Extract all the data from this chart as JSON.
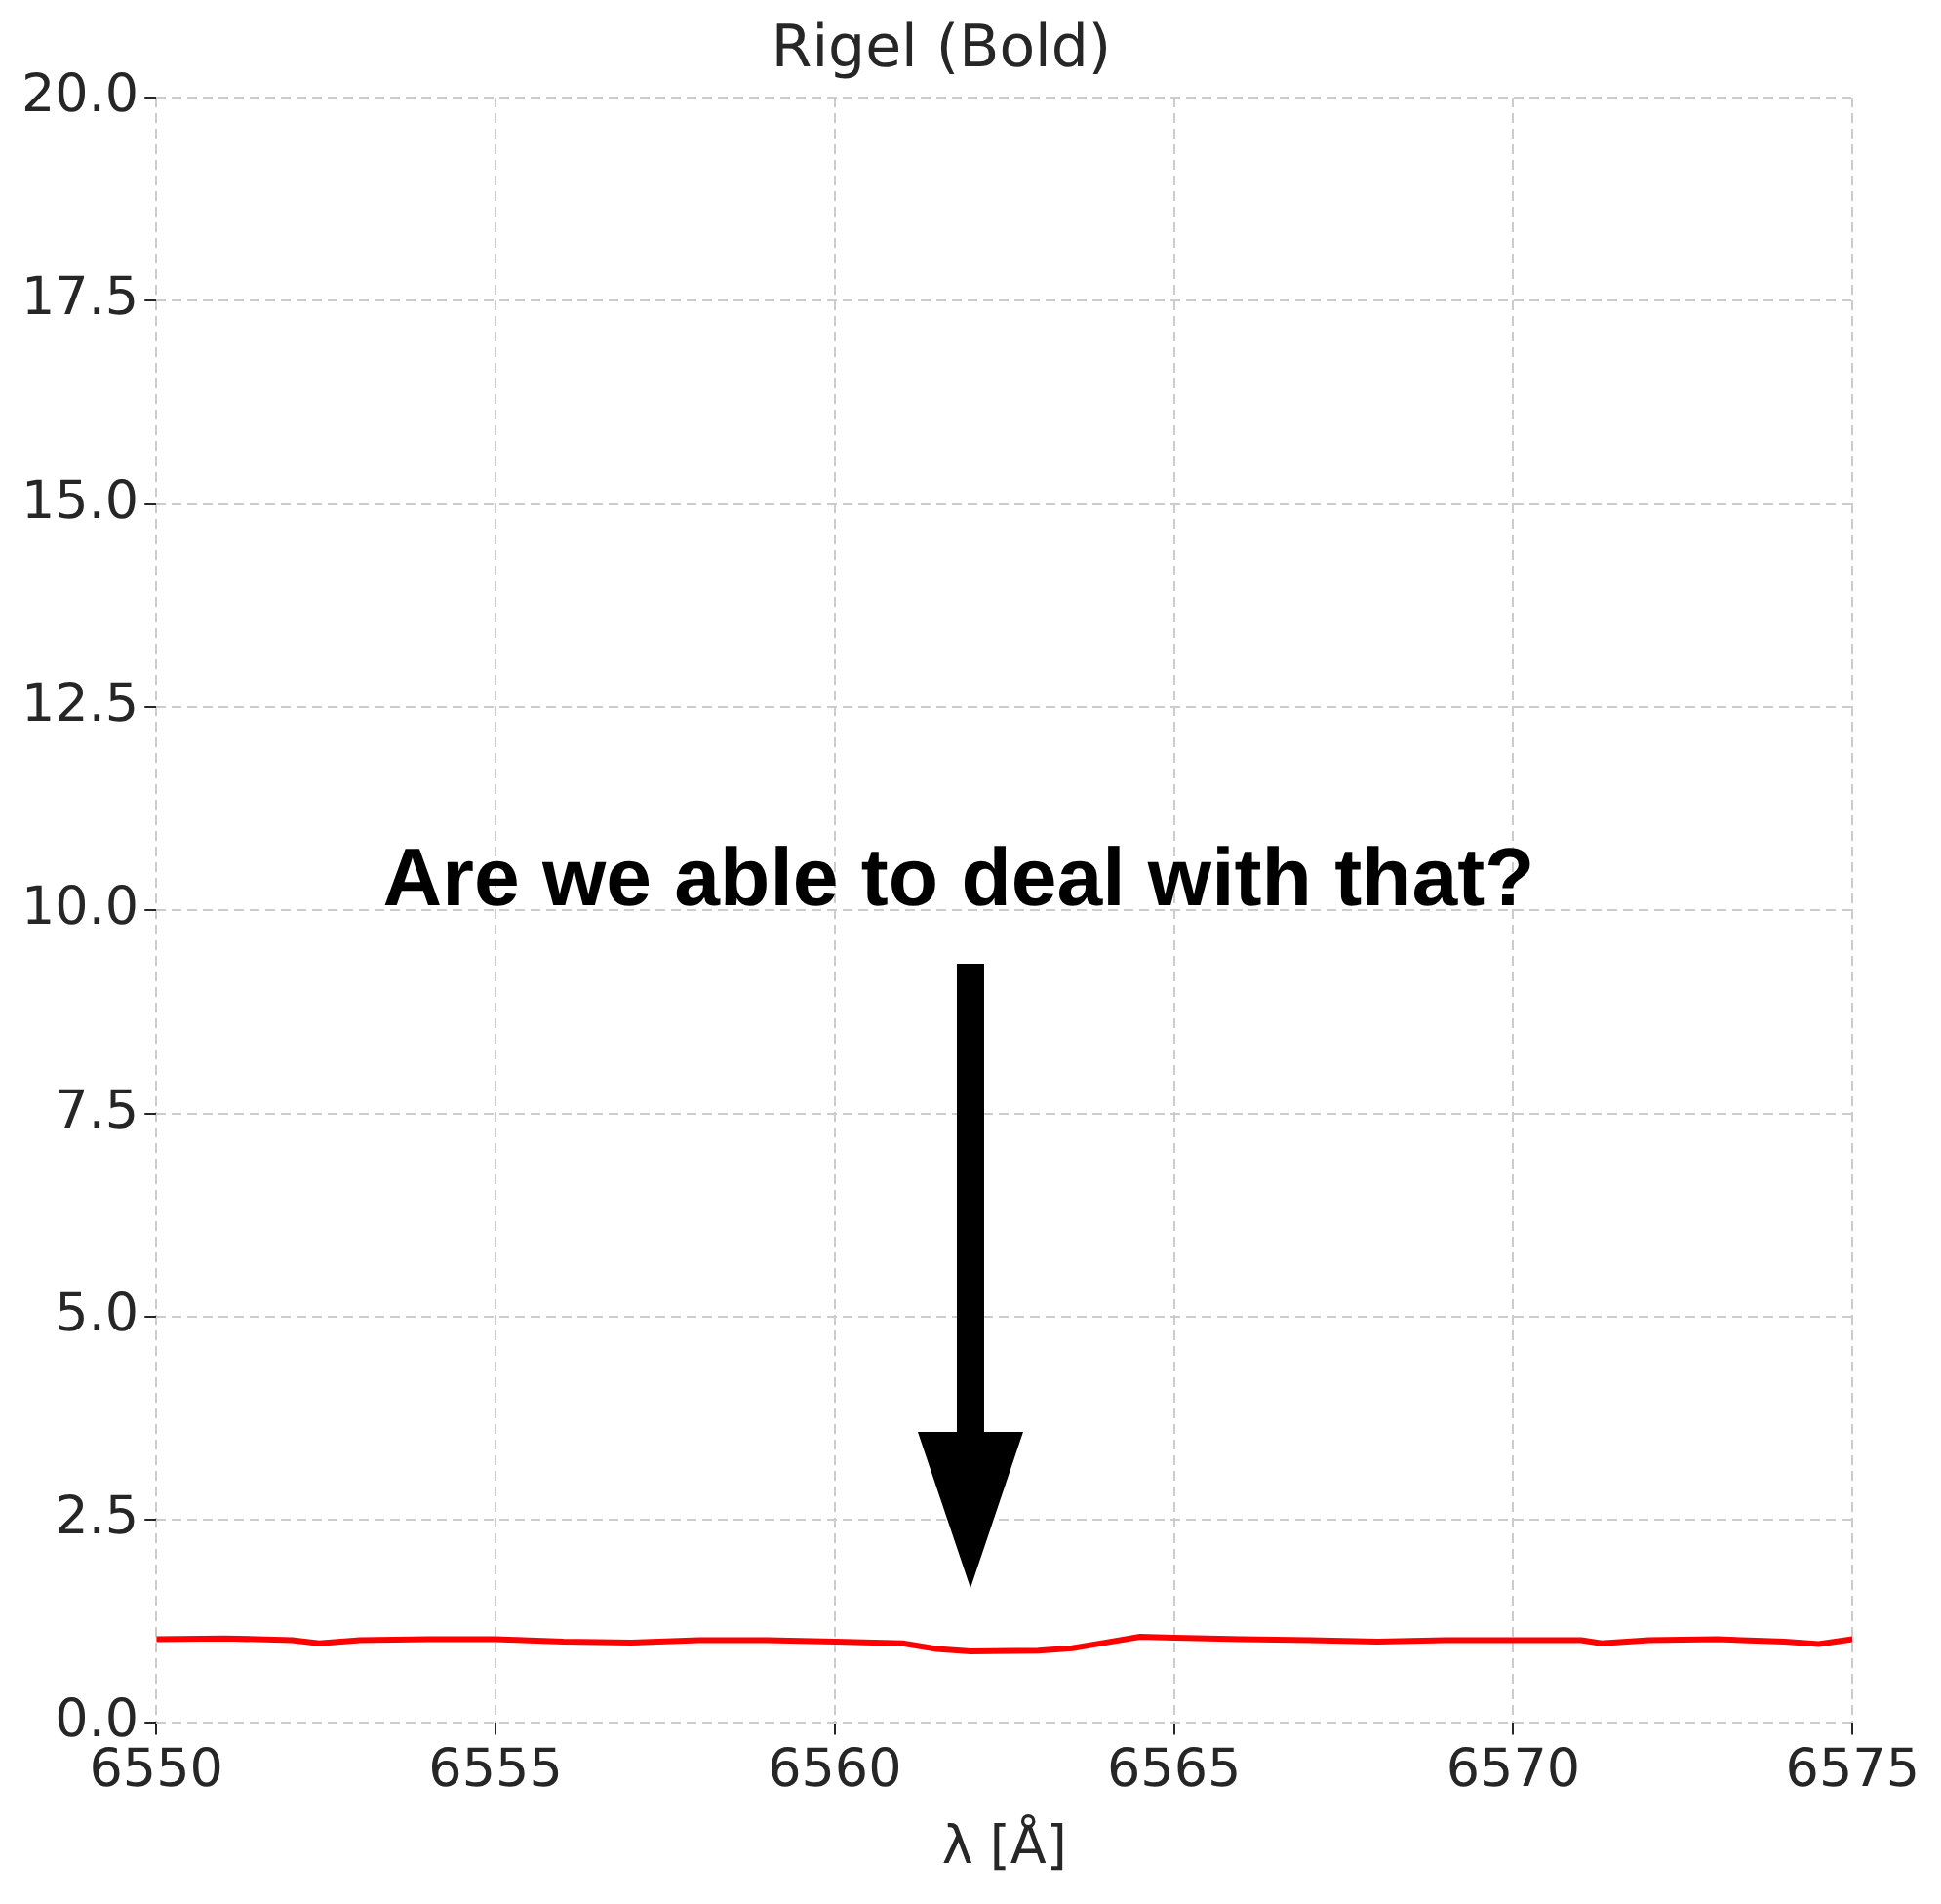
{
  "chart_data": {
    "type": "line",
    "title": "Rigel (Bold)",
    "xlabel": "λ [Å]",
    "x": [
      6550,
      6551,
      6552,
      6552.4,
      6553,
      6554,
      6555,
      6556,
      6557,
      6558,
      6559,
      6560,
      6561,
      6561.5,
      6562,
      6563,
      6563.5,
      6564,
      6564.5,
      6565,
      6566,
      6567,
      6568,
      6569,
      6570,
      6571,
      6571.3,
      6572,
      6573,
      6574,
      6574.5,
      6575
    ],
    "series": [
      {
        "color": "#ff0000",
        "values": [
          1.03,
          1.04,
          1.02,
          0.98,
          1.02,
          1.03,
          1.03,
          1.0,
          0.99,
          1.02,
          1.02,
          1.0,
          0.98,
          0.91,
          0.88,
          0.89,
          0.92,
          0.99,
          1.06,
          1.05,
          1.03,
          1.02,
          1.0,
          1.02,
          1.02,
          1.02,
          0.98,
          1.02,
          1.03,
          1.0,
          0.97,
          1.03
        ]
      }
    ],
    "xlim": [
      6550,
      6575
    ],
    "xticks": [
      6550,
      6555,
      6560,
      6565,
      6570,
      6575
    ],
    "ylim": [
      0,
      20
    ],
    "yticks": [
      {
        "value": 0,
        "label": "0.0"
      },
      {
        "value": 2.5,
        "label": "2.5"
      },
      {
        "value": 5,
        "label": "5.0"
      },
      {
        "value": 7.5,
        "label": "7.5"
      },
      {
        "value": 10,
        "label": "10.0"
      },
      {
        "value": 12.5,
        "label": "12.5"
      },
      {
        "value": 15,
        "label": "15.0"
      },
      {
        "value": 17.5,
        "label": "17.5"
      },
      {
        "value": 20,
        "label": "20.0"
      }
    ],
    "grid": true,
    "marker": "none",
    "line_style": "solid",
    "annotations": [
      "Are we able to deal with that?"
    ]
  }
}
